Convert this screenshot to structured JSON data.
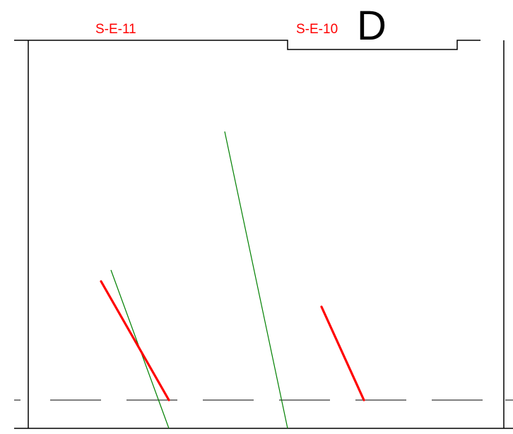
{
  "labels": {
    "left_section": "S-E-11",
    "right_section": "S-E-10",
    "grid_letter": "D"
  },
  "colors": {
    "outline": "#000000",
    "red_member": "#ff0000",
    "green_member": "#008000",
    "label_red": "#ff0000",
    "letter": "#000000"
  }
}
